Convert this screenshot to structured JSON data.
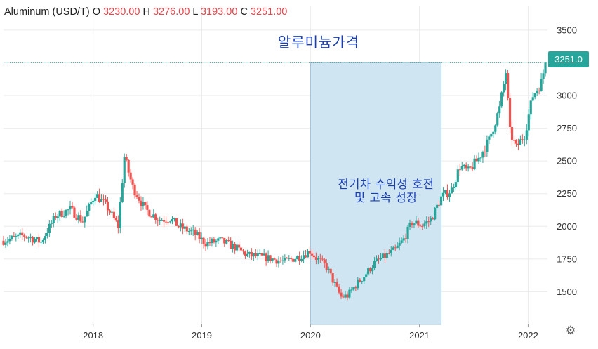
{
  "legend": {
    "symbol": "Aluminum (USD/T)",
    "open_label": "O",
    "open_value": "3230.00",
    "high_label": "H",
    "high_value": "3276.00",
    "low_label": "L",
    "low_value": "3193.00",
    "close_label": "C",
    "close_value": "3251.00"
  },
  "title": "알루미늄가격",
  "annotation": {
    "line1": "전기차 수익성 호전",
    "line2": "및 고속 성장"
  },
  "last_price_label": "3251.0",
  "icons": {
    "settings": "gear-icon"
  },
  "colors": {
    "up": "#26a69a",
    "down": "#ef5350",
    "highlight_fill": "#cfe5f2",
    "highlight_stroke": "#9dbfd6",
    "grid": "#ebebeb",
    "annotation_text": "#1a3fb4",
    "last_price_line": "#26a69a"
  },
  "chart_data": {
    "type": "candlestick",
    "title": "알루미늄가격",
    "y_axis": {
      "position": "right",
      "range": [
        1250,
        3580
      ],
      "ticks": [
        1500,
        1750,
        2000,
        2250,
        2500,
        2750,
        3000,
        3250,
        3500
      ],
      "tick_labels": [
        "1500",
        "1750",
        "2000",
        "2250",
        "2500",
        "2750",
        "3000",
        "",
        "3500"
      ]
    },
    "x_axis": {
      "range": [
        "2017-03-06",
        "2022-03-07"
      ],
      "ticks": [
        "2018-01-01",
        "2019-01-01",
        "2020-01-01",
        "2021-01-01",
        "2022-01-01"
      ],
      "tick_labels": [
        "2018",
        "2019",
        "2020",
        "2021",
        "2022"
      ]
    },
    "highlight_period": [
      "2020-01-01",
      "2021-03-15"
    ],
    "last_price": 3251.0,
    "grid": true,
    "anchors": [
      [
        "2017-03-06",
        1890
      ],
      [
        "2017-05-15",
        1930
      ],
      [
        "2017-07-10",
        1880
      ],
      [
        "2017-08-28",
        2080
      ],
      [
        "2017-10-16",
        2130
      ],
      [
        "2017-11-27",
        2040
      ],
      [
        "2018-01-08",
        2250
      ],
      [
        "2018-02-19",
        2140
      ],
      [
        "2018-03-26",
        2000
      ],
      [
        "2018-04-16",
        2530
      ],
      [
        "2018-05-14",
        2300
      ],
      [
        "2018-06-25",
        2130
      ],
      [
        "2018-08-13",
        2050
      ],
      [
        "2018-09-17",
        2060
      ],
      [
        "2018-10-15",
        2000
      ],
      [
        "2018-12-03",
        1950
      ],
      [
        "2019-01-14",
        1870
      ],
      [
        "2019-03-04",
        1890
      ],
      [
        "2019-04-22",
        1840
      ],
      [
        "2019-06-03",
        1780
      ],
      [
        "2019-08-05",
        1760
      ],
      [
        "2019-10-07",
        1730
      ],
      [
        "2019-11-25",
        1770
      ],
      [
        "2019-12-30",
        1810
      ],
      [
        "2020-01-20",
        1760
      ],
      [
        "2020-02-24",
        1690
      ],
      [
        "2020-03-30",
        1520
      ],
      [
        "2020-04-13",
        1460
      ],
      [
        "2020-05-04",
        1470
      ],
      [
        "2020-06-01",
        1550
      ],
      [
        "2020-06-29",
        1620
      ],
      [
        "2020-08-03",
        1720
      ],
      [
        "2020-09-07",
        1770
      ],
      [
        "2020-10-12",
        1820
      ],
      [
        "2020-11-09",
        1900
      ],
      [
        "2020-12-07",
        2030
      ],
      [
        "2021-01-11",
        2010
      ],
      [
        "2021-02-08",
        2050
      ],
      [
        "2021-03-15",
        2220
      ],
      [
        "2021-04-19",
        2280
      ],
      [
        "2021-05-17",
        2460
      ],
      [
        "2021-06-14",
        2420
      ],
      [
        "2021-07-19",
        2520
      ],
      [
        "2021-08-23",
        2660
      ],
      [
        "2021-09-27",
        2900
      ],
      [
        "2021-10-18",
        3180
      ],
      [
        "2021-11-01",
        2720
      ],
      [
        "2021-11-22",
        2600
      ],
      [
        "2021-12-20",
        2700
      ],
      [
        "2022-01-17",
        3000
      ],
      [
        "2022-02-14",
        3100
      ],
      [
        "2022-02-28",
        3251
      ]
    ]
  }
}
